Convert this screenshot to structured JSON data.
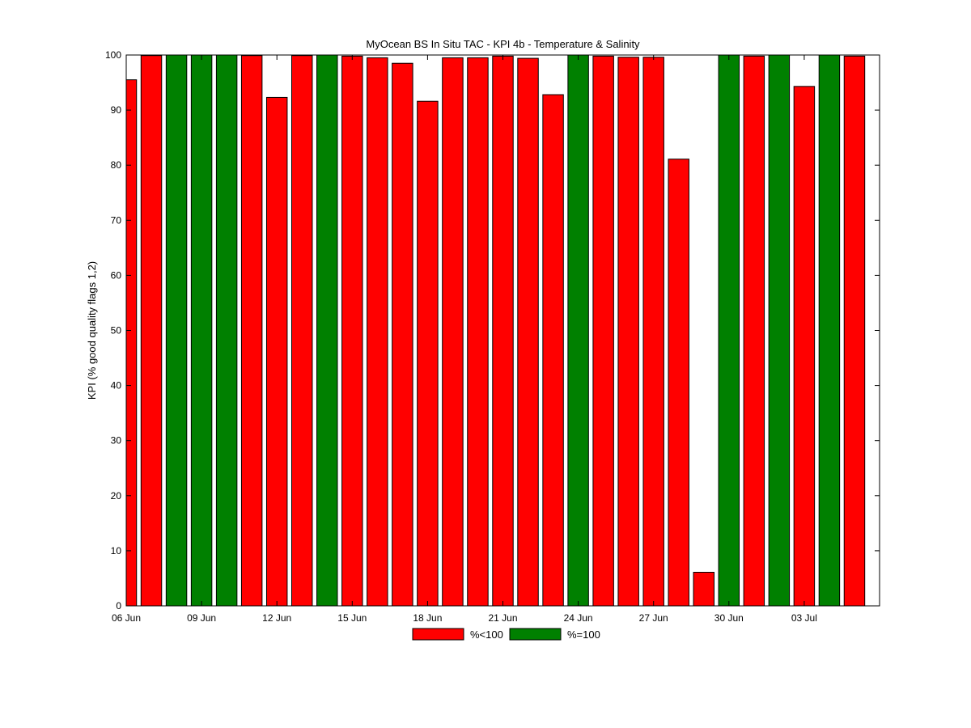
{
  "chart_data": {
    "type": "bar",
    "title": "MyOcean  BS In Situ TAC - KPI 4b - Temperature & Salinity",
    "xlabel": "",
    "ylabel": "KPI (% good quality flags 1,2)",
    "ylim": [
      0,
      100
    ],
    "yticks": [
      0,
      10,
      20,
      30,
      40,
      50,
      60,
      70,
      80,
      90,
      100
    ],
    "x_start": "2012-06-06",
    "x_tick_labels": [
      "06 Jun",
      "09 Jun",
      "12 Jun",
      "15 Jun",
      "18 Jun",
      "21 Jun",
      "24 Jun",
      "27 Jun",
      "30 Jun",
      "03 Jul"
    ],
    "x_tick_dates": [
      "2012-06-06",
      "2012-06-09",
      "2012-06-12",
      "2012-06-15",
      "2012-06-18",
      "2012-06-21",
      "2012-06-24",
      "2012-06-27",
      "2012-06-30",
      "2012-07-03"
    ],
    "grid": false,
    "legend_position": "bottom",
    "colors": {
      "below_100": "#ff0000",
      "equal_100": "#008000"
    },
    "legend": [
      {
        "key": "below_100",
        "label": "%<100"
      },
      {
        "key": "equal_100",
        "label": "%=100"
      }
    ],
    "bars": [
      {
        "date": "2012-06-06",
        "value": 95.5,
        "category": "below_100"
      },
      {
        "date": "2012-06-07",
        "value": 99.9,
        "category": "below_100"
      },
      {
        "date": "2012-06-08",
        "value": 100,
        "category": "equal_100"
      },
      {
        "date": "2012-06-09",
        "value": 100,
        "category": "equal_100"
      },
      {
        "date": "2012-06-10",
        "value": 100,
        "category": "equal_100"
      },
      {
        "date": "2012-06-11",
        "value": 99.9,
        "category": "below_100"
      },
      {
        "date": "2012-06-12",
        "value": 92.3,
        "category": "below_100"
      },
      {
        "date": "2012-06-13",
        "value": 99.9,
        "category": "below_100"
      },
      {
        "date": "2012-06-14",
        "value": 100,
        "category": "equal_100"
      },
      {
        "date": "2012-06-15",
        "value": 99.8,
        "category": "below_100"
      },
      {
        "date": "2012-06-16",
        "value": 99.5,
        "category": "below_100"
      },
      {
        "date": "2012-06-17",
        "value": 98.5,
        "category": "below_100"
      },
      {
        "date": "2012-06-18",
        "value": 91.6,
        "category": "below_100"
      },
      {
        "date": "2012-06-19",
        "value": 99.5,
        "category": "below_100"
      },
      {
        "date": "2012-06-20",
        "value": 99.5,
        "category": "below_100"
      },
      {
        "date": "2012-06-21",
        "value": 99.8,
        "category": "below_100"
      },
      {
        "date": "2012-06-22",
        "value": 99.4,
        "category": "below_100"
      },
      {
        "date": "2012-06-23",
        "value": 92.8,
        "category": "below_100"
      },
      {
        "date": "2012-06-24",
        "value": 100,
        "category": "equal_100"
      },
      {
        "date": "2012-06-25",
        "value": 99.8,
        "category": "below_100"
      },
      {
        "date": "2012-06-26",
        "value": 99.6,
        "category": "below_100"
      },
      {
        "date": "2012-06-27",
        "value": 99.6,
        "category": "below_100"
      },
      {
        "date": "2012-06-28",
        "value": 81.1,
        "category": "below_100"
      },
      {
        "date": "2012-06-29",
        "value": 6.1,
        "category": "below_100"
      },
      {
        "date": "2012-06-30",
        "value": 100,
        "category": "equal_100"
      },
      {
        "date": "2012-07-01",
        "value": 99.8,
        "category": "below_100"
      },
      {
        "date": "2012-07-02",
        "value": 100,
        "category": "equal_100"
      },
      {
        "date": "2012-07-03",
        "value": 94.3,
        "category": "below_100"
      },
      {
        "date": "2012-07-04",
        "value": 100,
        "category": "equal_100"
      },
      {
        "date": "2012-07-05",
        "value": 99.8,
        "category": "below_100"
      }
    ]
  }
}
